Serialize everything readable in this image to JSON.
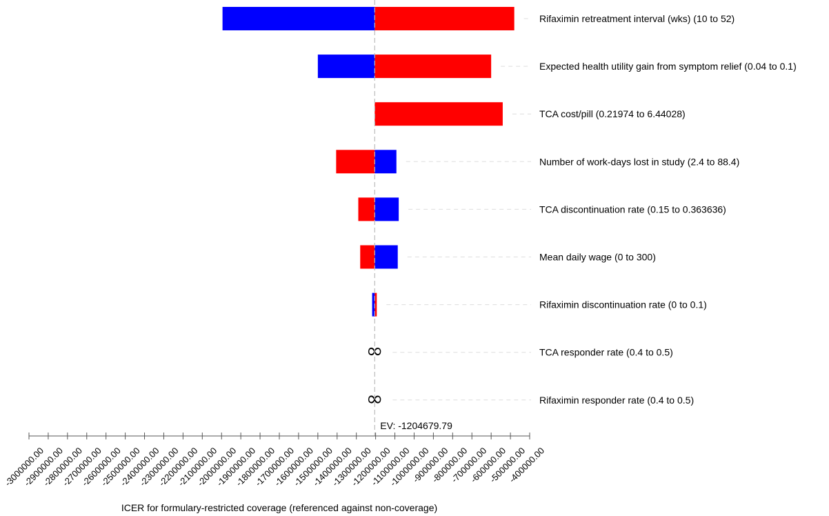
{
  "chart_data": {
    "type": "tornado",
    "xlabel": "ICER for formulary-restricted coverage (referenced against non-coverage)",
    "ev_label": "EV: -1204679.79",
    "ev_value": -1204679.79,
    "xlim": [
      -3000000,
      -400000
    ],
    "ticks": [
      -3000000,
      -2900000,
      -2800000,
      -2700000,
      -2600000,
      -2500000,
      -2400000,
      -2300000,
      -2200000,
      -2100000,
      -2000000,
      -1900000,
      -1800000,
      -1700000,
      -1600000,
      -1500000,
      -1400000,
      -1300000,
      -1200000,
      -1100000,
      -1000000,
      -900000,
      -800000,
      -700000,
      -600000,
      -500000,
      -400000
    ],
    "tick_labels": [
      "-3000000.00",
      "-2900000.00",
      "-2800000.00",
      "-2700000.00",
      "-2600000.00",
      "-2500000.00",
      "-2400000.00",
      "-2300000.00",
      "-2200000.00",
      "-2100000.00",
      "-2000000.00",
      "-1900000.00",
      "-1800000.00",
      "-1700000.00",
      "-1600000.00",
      "-1500000.00",
      "-1400000.00",
      "-1300000.00",
      "-1200000.00",
      "-1100000.00",
      "-1000000.00",
      "-900000.00",
      "-800000.00",
      "-700000.00",
      "-600000.00",
      "-500000.00",
      "-400000.00"
    ],
    "colors": {
      "low": "#0000ff",
      "high": "#ff0000",
      "ev_line": "#bbbbbb",
      "guide": "#dddddd"
    },
    "bars": [
      {
        "label": "Rifaximin retreatment interval (wks) (10 to 52)",
        "segments": [
          {
            "from": -1995000,
            "to": -1204679.79,
            "color": "low"
          },
          {
            "from": -1204679.79,
            "to": -480000,
            "color": "high"
          }
        ]
      },
      {
        "label": "Expected health utility gain from symptom relief (0.04 to 0.1)",
        "segments": [
          {
            "from": -1500000,
            "to": -1204679.79,
            "color": "low"
          },
          {
            "from": -1204679.79,
            "to": -600000,
            "color": "high"
          }
        ]
      },
      {
        "label": "TCA cost/pill (0.21974 to 6.44028)",
        "segments": [
          {
            "from": -1204679.79,
            "to": -540000,
            "color": "high"
          }
        ]
      },
      {
        "label": "Number of work-days lost in study (2.4 to 88.4)",
        "segments": [
          {
            "from": -1405000,
            "to": -1204679.79,
            "color": "high"
          },
          {
            "from": -1204679.79,
            "to": -1092000,
            "color": "low"
          }
        ]
      },
      {
        "label": "TCA discontinuation rate (0.15 to 0.363636)",
        "segments": [
          {
            "from": -1290000,
            "to": -1204679.79,
            "color": "high"
          },
          {
            "from": -1204679.79,
            "to": -1080000,
            "color": "low"
          }
        ]
      },
      {
        "label": "Mean daily wage (0 to 300)",
        "segments": [
          {
            "from": -1280000,
            "to": -1204679.79,
            "color": "high"
          },
          {
            "from": -1204679.79,
            "to": -1085000,
            "color": "low"
          }
        ]
      },
      {
        "label": "Rifaximin discontinuation rate (0 to 0.1)",
        "segments": [
          {
            "from": -1218000,
            "to": -1204679.79,
            "color": "low"
          },
          {
            "from": -1204679.79,
            "to": -1194000,
            "color": "high"
          }
        ]
      },
      {
        "label": "TCA responder rate (0.4 to 0.5)",
        "infinite": true,
        "symbol": "∞",
        "segments": []
      },
      {
        "label": "Rifaximin responder rate (0.4 to 0.5)",
        "infinite": true,
        "symbol": "∞",
        "segments": []
      }
    ]
  }
}
